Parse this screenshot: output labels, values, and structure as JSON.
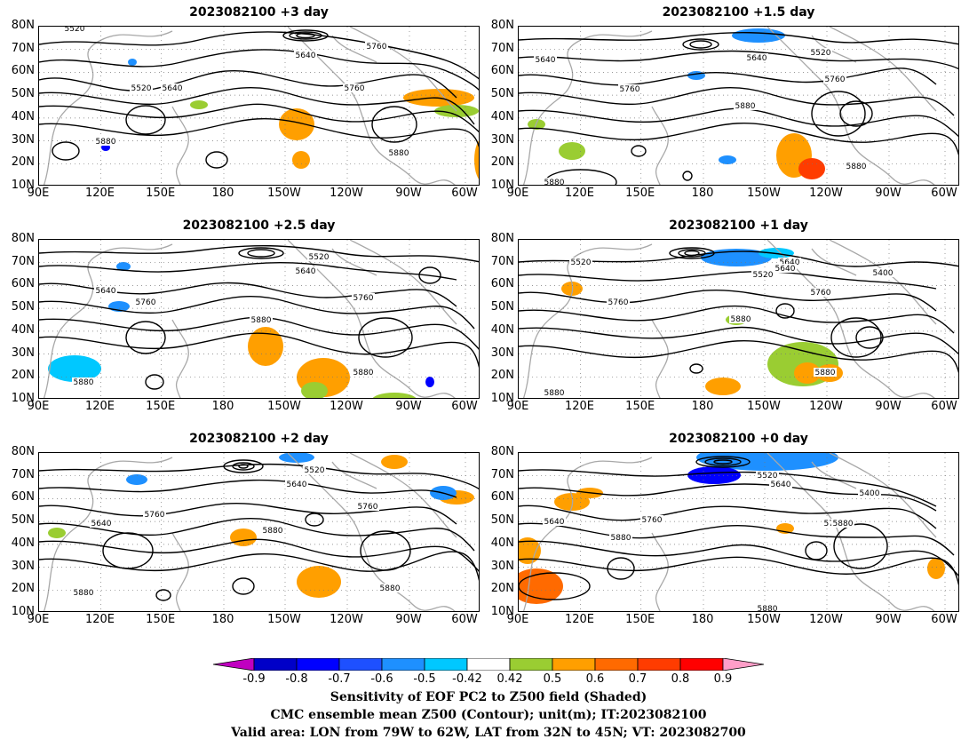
{
  "panels": [
    {
      "title": "2023082100 +3 day",
      "labels": [
        "5520",
        "5640",
        "5520",
        "5640",
        "5760",
        "5760",
        "5880",
        "5880"
      ]
    },
    {
      "title": "2023082100 +1.5 day",
      "labels": [
        "5640",
        "5640",
        "5520",
        "5760",
        "5760",
        "5880",
        "5880",
        "5880"
      ]
    },
    {
      "title": "2023082100 +2.5 day",
      "labels": [
        "5640",
        "5760",
        "5520",
        "5640",
        "5760",
        "5880",
        "5880",
        "5880"
      ]
    },
    {
      "title": "2023082100 +1 day",
      "labels": [
        "5520",
        "5640",
        "5760",
        "5520",
        "5640",
        "5400",
        "5760",
        "5880",
        "5880",
        "5880"
      ]
    },
    {
      "title": "2023082100 +2 day",
      "labels": [
        "5640",
        "5760",
        "5520",
        "5640",
        "5760",
        "5880",
        "5880",
        "5880"
      ]
    },
    {
      "title": "2023082100 +0 day",
      "labels": [
        "5640",
        "5760",
        "5880",
        "5520",
        "5640",
        "5400",
        "5760",
        "5880",
        "5880"
      ]
    }
  ],
  "y_ticks": [
    "80N",
    "70N",
    "60N",
    "50N",
    "40N",
    "30N",
    "20N",
    "10N"
  ],
  "x_ticks": [
    "90E",
    "120E",
    "150E",
    "180",
    "150W",
    "120W",
    "90W",
    "60W"
  ],
  "colorbar": {
    "labels": [
      "-0.9",
      "-0.8",
      "-0.7",
      "-0.6",
      "-0.5",
      "-0.42",
      "0.42",
      "0.5",
      "0.6",
      "0.7",
      "0.8",
      "0.9"
    ],
    "colors": [
      "#c000c0",
      "#0000c8",
      "#0000ff",
      "#1e50ff",
      "#1e90ff",
      "#00c8ff",
      "#ffffff",
      "#9acd32",
      "#ff9f00",
      "#ff6a00",
      "#ff3c00",
      "#ff0000",
      "#ff9ec8"
    ]
  },
  "caption": {
    "line1": "Sensitivity of EOF PC2 to Z500 field (Shaded)",
    "line2": "CMC ensemble mean Z500 (Contour); unit(m); IT:2023082100",
    "line3": "Valid area: LON from 79W to 62W, LAT from 32N to 45N; VT: 2023082700"
  }
}
